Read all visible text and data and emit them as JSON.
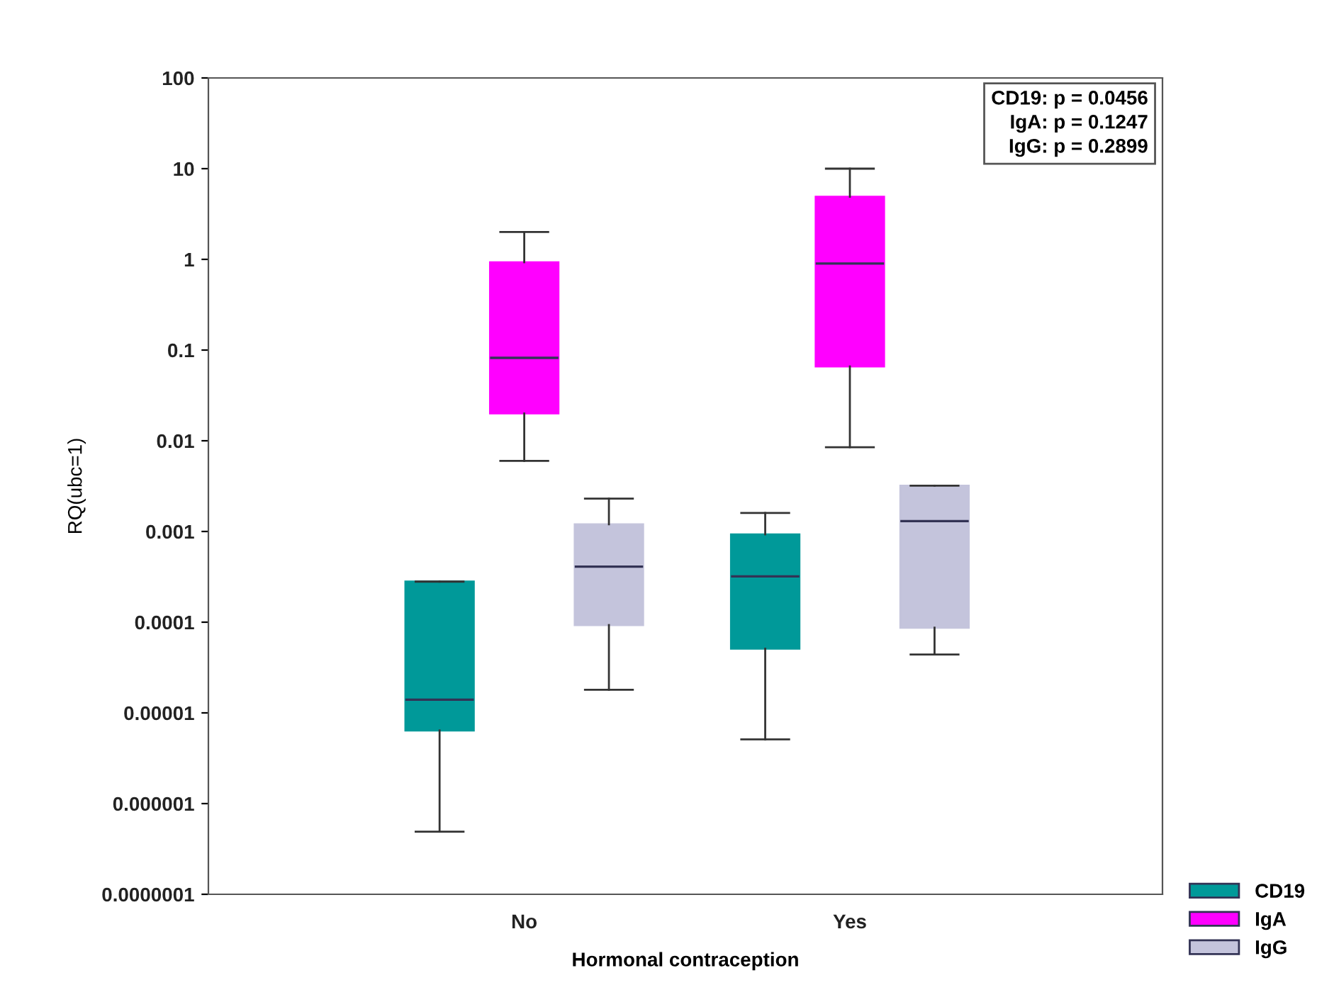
{
  "chart_data": {
    "type": "box",
    "xlabel": "Hormonal contraception",
    "ylabel": "RQ(ubc=1)",
    "categories": [
      "No",
      "Yes"
    ],
    "log": true,
    "ylim": [
      1e-07,
      100
    ],
    "yticks": [
      {
        "value": 1e-07,
        "label": "0.0000001"
      },
      {
        "value": 1e-06,
        "label": "0.000001"
      },
      {
        "value": 1e-05,
        "label": "0.00001"
      },
      {
        "value": 0.0001,
        "label": "0.0001"
      },
      {
        "value": 0.001,
        "label": "0.001"
      },
      {
        "value": 0.01,
        "label": "0.01"
      },
      {
        "value": 0.1,
        "label": "0.1"
      },
      {
        "value": 1,
        "label": "1"
      },
      {
        "value": 10,
        "label": "10"
      },
      {
        "value": 100,
        "label": "100"
      }
    ],
    "series": [
      {
        "name": "CD19",
        "color": "#009999",
        "boxes": [
          {
            "low": 4.9e-07,
            "q1": 6.4e-06,
            "median": 1.4e-05,
            "q3": 0.00028,
            "high": 0.00028
          },
          {
            "low": 5.1e-06,
            "q1": 5.1e-05,
            "median": 0.00032,
            "q3": 0.00093,
            "high": 0.0016
          }
        ]
      },
      {
        "name": "IgA",
        "color": "#ff00ff",
        "boxes": [
          {
            "low": 0.006,
            "q1": 0.02,
            "median": 0.082,
            "q3": 0.93,
            "high": 2.0
          },
          {
            "low": 0.0085,
            "q1": 0.066,
            "median": 0.9,
            "q3": 4.9,
            "high": 10
          }
        ]
      },
      {
        "name": "IgG",
        "color": "#c4c4dc",
        "boxes": [
          {
            "low": 1.8e-05,
            "q1": 9.3e-05,
            "median": 0.00041,
            "q3": 0.0012,
            "high": 0.0023
          },
          {
            "low": 4.4e-05,
            "q1": 8.7e-05,
            "median": 0.0013,
            "q3": 0.0032,
            "high": 0.0032
          }
        ]
      }
    ],
    "annotations": [
      "CD19: p = 0.0456",
      "IgA: p = 0.1247",
      "IgG: p = 0.2899"
    ],
    "legend": "bottom right",
    "grid": false
  }
}
